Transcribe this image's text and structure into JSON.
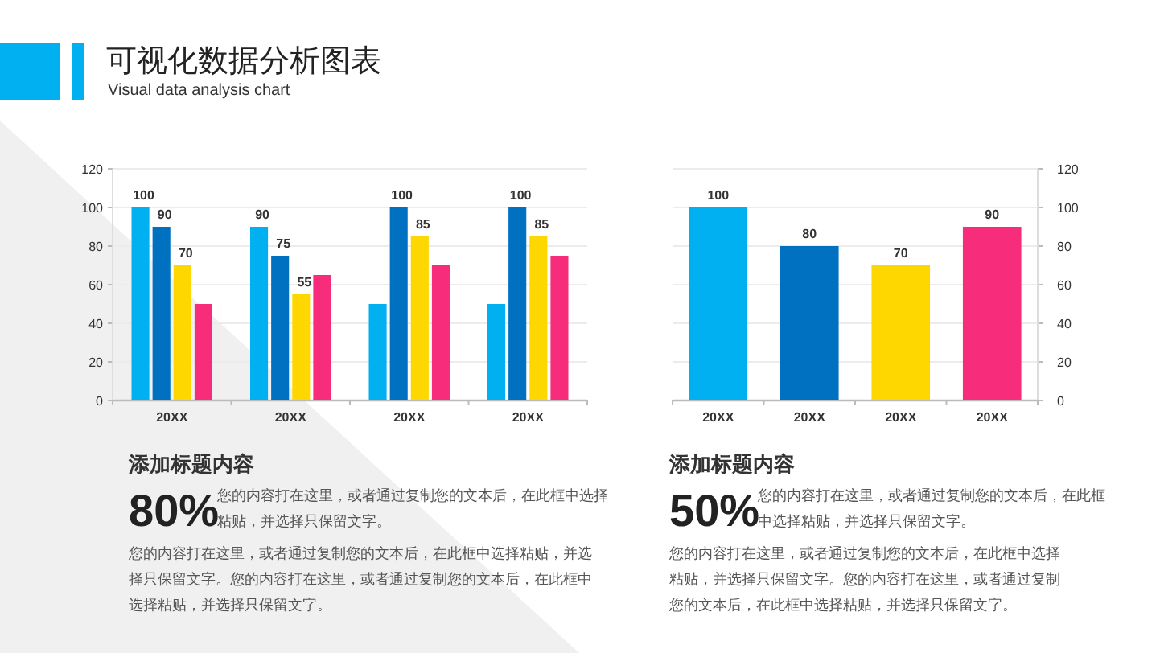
{
  "chart_data": [
    {
      "type": "bar",
      "title": "可视化数据分析图表",
      "subtitle": "Visual data analysis chart",
      "categories": [
        "20XX",
        "20XX",
        "20XX",
        "20XX"
      ],
      "series": [
        {
          "color": "#00b0f0",
          "values": [
            100,
            90,
            50,
            50
          ],
          "value_labels": [
            "100",
            "90",
            null,
            null
          ]
        },
        {
          "color": "#0070c0",
          "values": [
            90,
            75,
            100,
            100
          ],
          "value_labels": [
            "90",
            "75",
            "100",
            "100"
          ]
        },
        {
          "color": "#ffd700",
          "values": [
            70,
            55,
            85,
            85
          ],
          "value_labels": [
            "70",
            "55",
            "85",
            "85"
          ]
        },
        {
          "color": "#f72d7c",
          "values": [
            50,
            65,
            70,
            75
          ],
          "value_labels": [
            null,
            null,
            null,
            null
          ]
        }
      ],
      "ylim": [
        0,
        120
      ],
      "yticks": [
        0,
        20,
        40,
        60,
        80,
        100,
        120
      ],
      "grid": "y",
      "annotations": [
        "添加标题内容",
        "80%",
        "您的内容打在这里，或者通过复制您的文本后，在此框中选择粘贴，并选择只保留文字。",
        "您的内容打在这里，或者通过复制您的文本后，在此框中选择粘贴，并选择只保留文字。您的内容打在这里，或者通过复制您的文本后，在此框中选择粘贴，并选择只保留文字。"
      ]
    },
    {
      "type": "bar",
      "categories": [
        "20XX",
        "20XX",
        "20XX",
        "20XX"
      ],
      "series": [
        {
          "axis": "y2",
          "values": [
            100,
            80,
            70,
            90
          ]
        }
      ],
      "colors": [
        "#00b0f0",
        "#0070c0",
        "#ffd700",
        "#f72d7c"
      ],
      "y2lim": [
        0,
        120
      ],
      "y2ticks": [
        0,
        20,
        40,
        60,
        80,
        100,
        120
      ],
      "grid": "y",
      "data_labels": true,
      "annotations": [
        "添加标题内容",
        "50%",
        "您的内容打在这里，或者通过复制您的文本后，在此框中选择粘贴，并选择只保留文字。",
        "您的内容打在这里，或者通过复制您的文本后，在此框中选择粘贴，并选择只保留文字。您的内容打在这里，或者通过复制您的文本后，在此框中选择粘贴，并选择只保留文字。"
      ]
    }
  ]
}
